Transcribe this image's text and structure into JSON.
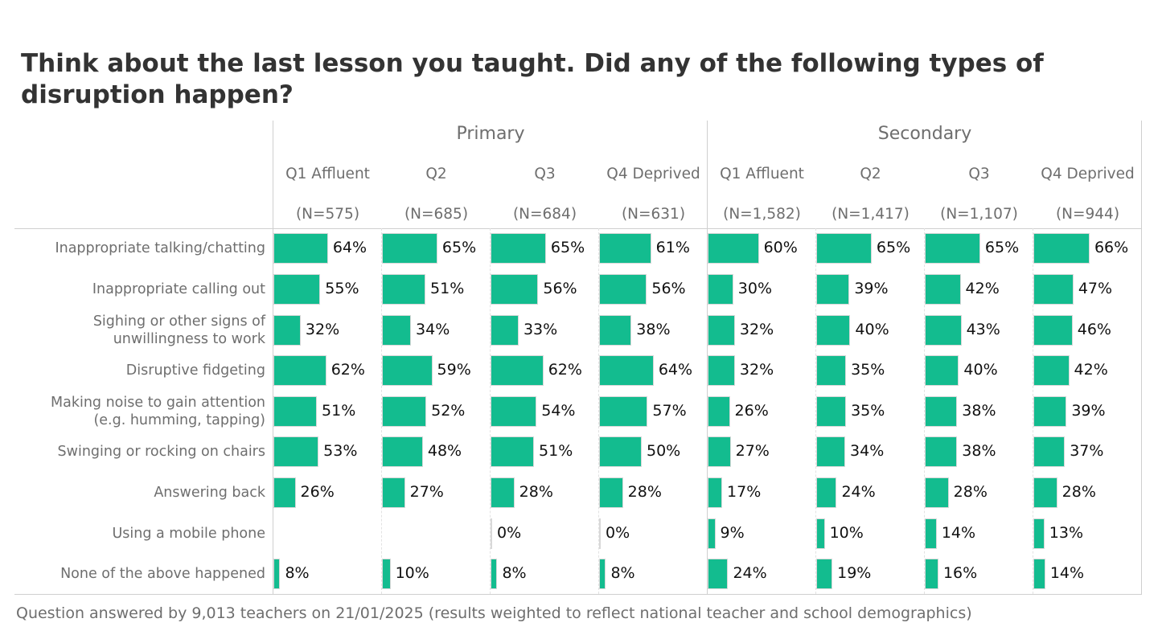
{
  "title": "Think about the last lesson you taught. Did any of the following types of disruption happen?",
  "footer": "Question answered by 9,013 teachers on 21/01/2025 (results weighted to reflect national teacher and school demographics)",
  "colors": {
    "bar": "#13bc8f"
  },
  "chart_data": {
    "type": "bar",
    "title": "Think about the last lesson you taught. Did any of the following types of disruption happen?",
    "groups": [
      "Primary",
      "Secondary"
    ],
    "columns": [
      {
        "group": "Primary",
        "label": "Q1 Affluent",
        "n": "(N=575)"
      },
      {
        "group": "Primary",
        "label": "Q2",
        "n": "(N=685)"
      },
      {
        "group": "Primary",
        "label": "Q3",
        "n": "(N=684)"
      },
      {
        "group": "Primary",
        "label": "Q4 Deprived",
        "n": "(N=631)"
      },
      {
        "group": "Secondary",
        "label": "Q1 Affluent",
        "n": "(N=1,582)"
      },
      {
        "group": "Secondary",
        "label": "Q2",
        "n": "(N=1,417)"
      },
      {
        "group": "Secondary",
        "label": "Q3",
        "n": "(N=1,107)"
      },
      {
        "group": "Secondary",
        "label": "Q4 Deprived",
        "n": "(N=944)"
      }
    ],
    "categories": [
      "Inappropriate talking/chatting",
      "Inappropriate calling out",
      "Sighing or other signs of\nunwillingness to work",
      "Disruptive fidgeting",
      "Making noise to gain attention\n(e.g. humming, tapping)",
      "Swinging or rocking on chairs",
      "Answering back",
      "Using a mobile phone",
      "None of the above happened"
    ],
    "values": [
      [
        64,
        65,
        65,
        61,
        60,
        65,
        65,
        66
      ],
      [
        55,
        51,
        56,
        56,
        30,
        39,
        42,
        47
      ],
      [
        32,
        34,
        33,
        38,
        32,
        40,
        43,
        46
      ],
      [
        62,
        59,
        62,
        64,
        32,
        35,
        40,
        42
      ],
      [
        51,
        52,
        54,
        57,
        26,
        35,
        38,
        39
      ],
      [
        53,
        48,
        51,
        50,
        27,
        34,
        38,
        37
      ],
      [
        26,
        27,
        28,
        28,
        17,
        24,
        28,
        28
      ],
      [
        null,
        null,
        0,
        0,
        9,
        10,
        14,
        13
      ],
      [
        8,
        10,
        8,
        8,
        24,
        19,
        16,
        14
      ]
    ],
    "unit": "%",
    "xlim": [
      0,
      100
    ]
  }
}
